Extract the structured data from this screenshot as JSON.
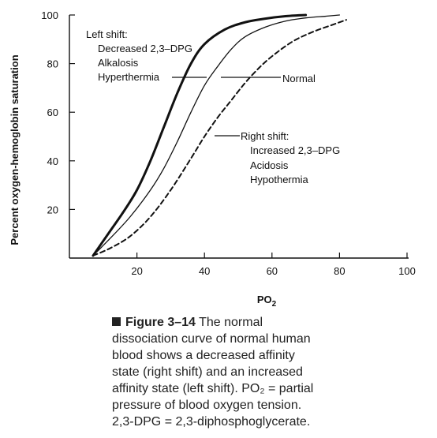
{
  "chart_data": {
    "type": "line",
    "xlabel": "PO2",
    "xlabel_main": "PO",
    "xlabel_sub": "2",
    "ylabel": "Percent oxygen-hemoglobin saturation",
    "xlim": [
      0,
      100
    ],
    "ylim": [
      0,
      100
    ],
    "x_ticks": [
      20,
      40,
      60,
      80,
      100
    ],
    "y_ticks": [
      20,
      40,
      60,
      80,
      100
    ],
    "x_tick_labels": [
      "20",
      "40",
      "60",
      "80",
      "100"
    ],
    "y_tick_labels": [
      "20",
      "40",
      "60",
      "80",
      "100"
    ],
    "grid": false,
    "series": [
      {
        "style": "thick-solid",
        "x": [
          7,
          12,
          16,
          20,
          24,
          28,
          32,
          36,
          40,
          46,
          52,
          58,
          64,
          70
        ],
        "y": [
          1,
          11,
          19,
          28,
          40,
          54,
          68,
          80,
          88,
          94,
          97,
          98.5,
          99.5,
          100
        ]
      },
      {
        "style": "thin-solid",
        "x": [
          7,
          12,
          18,
          24,
          28,
          32,
          36,
          40,
          44,
          48,
          52,
          58,
          64,
          70,
          76,
          80
        ],
        "y": [
          1,
          8,
          17,
          28,
          37,
          48,
          60,
          71,
          79,
          86,
          91,
          95,
          97.5,
          98.8,
          99.5,
          100
        ]
      },
      {
        "style": "dashed",
        "x": [
          7,
          12,
          18,
          24,
          30,
          36,
          40,
          44,
          48,
          52,
          56,
          60,
          66,
          72,
          78,
          82
        ],
        "y": [
          1,
          4,
          9,
          17,
          28,
          41,
          50,
          58,
          65,
          72,
          78,
          83,
          89,
          93,
          96,
          98
        ]
      }
    ],
    "annotations": {
      "left": [
        "Left shift:",
        "Decreased 2,3–DPG",
        "Alkalosis",
        "Hyperthermia"
      ],
      "normal": "Normal",
      "right": [
        "Right shift:",
        "Increased 2,3–DPG",
        "Acidosis",
        "Hypothermia"
      ]
    }
  },
  "caption": {
    "figure_label": "Figure 3–14",
    "line1_rest": "The normal",
    "line2": "dissociation curve of normal human",
    "line3": "blood shows a decreased affinity",
    "line4": "state (right shift) and an increased",
    "line5": "affinity state (left shift). PO₂ = partial",
    "line6": "pressure of blood oxygen tension.",
    "line7": "2,3-DPG = 2,3-diphosphoglycerate."
  }
}
